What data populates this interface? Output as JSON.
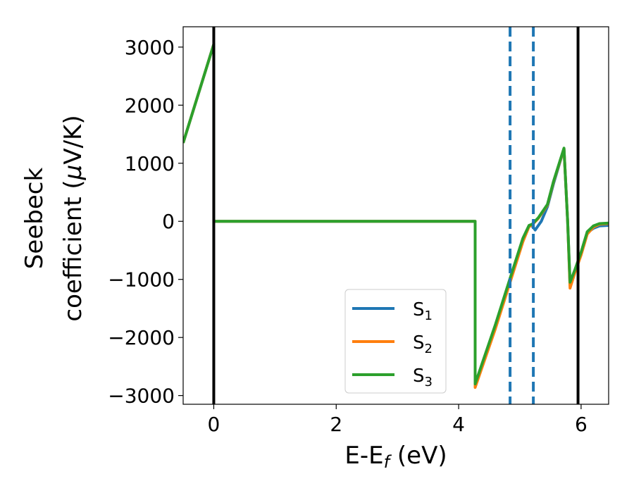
{
  "chart_data": {
    "type": "line",
    "title": "",
    "xlabel": "E-E",
    "xlabel_sub": "f",
    "xlabel_unit": " (eV)",
    "ylabel_line1": "Seebeck",
    "ylabel_line2": "coefficient  (",
    "ylabel_mu": "μ",
    "ylabel_unit": "V/K)",
    "xlim": [
      -0.5,
      6.45
    ],
    "ylim": [
      -3150,
      3350
    ],
    "xticks": [
      0,
      2,
      4,
      6
    ],
    "xtick_labels": [
      "0",
      "2",
      "4",
      "6"
    ],
    "yticks": [
      3000,
      2000,
      1000,
      0,
      -1000,
      -2000,
      -3000
    ],
    "ytick_labels": [
      "3000",
      "2000",
      "1000",
      "0",
      "−1000",
      "−2000",
      "−3000"
    ],
    "grid": false,
    "legend_position": "lower-center",
    "vlines_solid": [
      0.0,
      5.95
    ],
    "vlines_dashed": [
      4.84,
      5.22
    ],
    "vline_solid_color": "#000000",
    "vline_dashed_color": "#1f77b4",
    "series": [
      {
        "name": "S",
        "sub": "1",
        "color": "#1f77b4",
        "points": [
          [
            -0.5,
            1350
          ],
          [
            0.0,
            3050
          ],
          [
            0.0,
            0
          ],
          [
            4.27,
            0
          ],
          [
            4.27,
            -2820
          ],
          [
            4.6,
            -1800
          ],
          [
            4.84,
            -1000
          ],
          [
            5.05,
            -300
          ],
          [
            5.15,
            -80
          ],
          [
            5.2,
            -80
          ],
          [
            5.25,
            -150
          ],
          [
            5.35,
            0
          ],
          [
            5.45,
            250
          ],
          [
            5.55,
            650
          ],
          [
            5.72,
            1250
          ],
          [
            5.78,
            0
          ],
          [
            5.82,
            -1100
          ],
          [
            5.9,
            -850
          ],
          [
            6.0,
            -550
          ],
          [
            6.1,
            -200
          ],
          [
            6.2,
            -120
          ],
          [
            6.3,
            -80
          ],
          [
            6.45,
            -70
          ]
        ]
      },
      {
        "name": "S",
        "sub": "2",
        "color": "#ff7f0e",
        "points": [
          [
            -0.5,
            1350
          ],
          [
            0.0,
            3050
          ],
          [
            0.0,
            0
          ],
          [
            4.27,
            0
          ],
          [
            4.27,
            -2860
          ],
          [
            4.6,
            -1850
          ],
          [
            4.84,
            -1050
          ],
          [
            5.05,
            -350
          ],
          [
            5.15,
            -90
          ],
          [
            5.2,
            -60
          ],
          [
            5.3,
            50
          ],
          [
            5.45,
            280
          ],
          [
            5.55,
            680
          ],
          [
            5.72,
            1250
          ],
          [
            5.78,
            0
          ],
          [
            5.82,
            -1150
          ],
          [
            5.9,
            -880
          ],
          [
            6.0,
            -580
          ],
          [
            6.1,
            -220
          ],
          [
            6.2,
            -100
          ],
          [
            6.3,
            -50
          ],
          [
            6.45,
            -40
          ]
        ]
      },
      {
        "name": "S",
        "sub": "3",
        "color": "#2ca02c",
        "points": [
          [
            -0.5,
            1350
          ],
          [
            0.0,
            3050
          ],
          [
            0.0,
            0
          ],
          [
            4.27,
            0
          ],
          [
            4.27,
            -2800
          ],
          [
            4.6,
            -1780
          ],
          [
            4.84,
            -980
          ],
          [
            5.05,
            -290
          ],
          [
            5.15,
            -70
          ],
          [
            5.2,
            -50
          ],
          [
            5.3,
            60
          ],
          [
            5.45,
            290
          ],
          [
            5.55,
            690
          ],
          [
            5.72,
            1260
          ],
          [
            5.78,
            0
          ],
          [
            5.82,
            -1050
          ],
          [
            5.9,
            -830
          ],
          [
            6.0,
            -530
          ],
          [
            6.1,
            -180
          ],
          [
            6.2,
            -80
          ],
          [
            6.3,
            -40
          ],
          [
            6.45,
            -30
          ]
        ]
      }
    ]
  }
}
